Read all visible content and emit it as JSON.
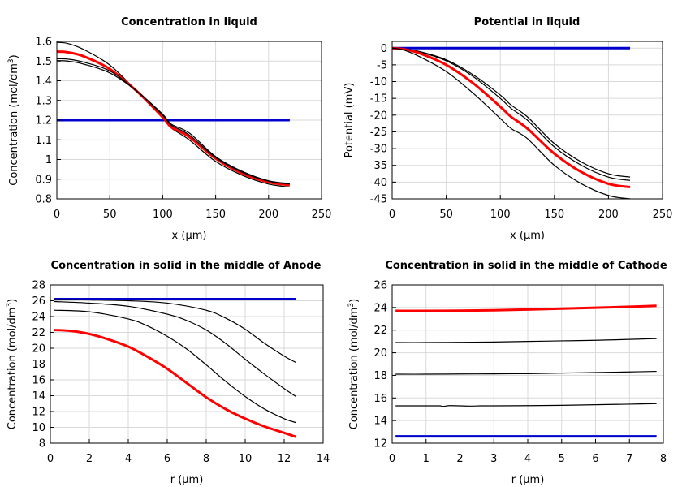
{
  "chart_data": [
    {
      "type": "line",
      "title": "Concentration in liquid",
      "xlabel": "x (µm)",
      "ylabel": "Concentration (mol/dm³)",
      "ylabel_main": "Concentration (mol/dm",
      "ylabel_sup": "3",
      "ylabel_tail": ")",
      "xlim": [
        0,
        250
      ],
      "ylim": [
        0.8,
        1.6
      ],
      "xticks": [
        0,
        50,
        100,
        150,
        200,
        250
      ],
      "yticks": [
        0.8,
        0.9,
        1,
        1.1,
        1.2,
        1.3,
        1.4,
        1.5,
        1.6
      ],
      "grid": true,
      "series": [
        {
          "color": "#0000cc",
          "width": 3,
          "x": [
            0,
            220
          ],
          "y": [
            1.2,
            1.2
          ]
        },
        {
          "color": "#000000",
          "width": 1.2,
          "x": [
            0,
            10,
            25,
            50,
            75,
            100,
            108,
            125,
            150,
            175,
            200,
            220
          ],
          "y": [
            1.595,
            1.59,
            1.56,
            1.48,
            1.35,
            1.21,
            1.16,
            1.1,
            0.99,
            0.92,
            0.875,
            0.86
          ]
        },
        {
          "color": "#ff0000",
          "width": 3,
          "x": [
            0,
            10,
            25,
            50,
            75,
            100,
            108,
            125,
            150,
            175,
            200,
            220
          ],
          "y": [
            1.548,
            1.545,
            1.525,
            1.46,
            1.35,
            1.215,
            1.165,
            1.115,
            1.005,
            0.93,
            0.885,
            0.87
          ]
        },
        {
          "color": "#000000",
          "width": 1.2,
          "x": [
            0,
            10,
            25,
            50,
            75,
            100,
            108,
            125,
            150,
            175,
            200,
            220
          ],
          "y": [
            1.512,
            1.51,
            1.495,
            1.45,
            1.35,
            1.225,
            1.175,
            1.125,
            1.01,
            0.935,
            0.89,
            0.875
          ]
        },
        {
          "color": "#000000",
          "width": 1.2,
          "x": [
            0,
            10,
            25,
            50,
            75,
            100,
            108,
            125,
            150,
            175,
            200,
            220
          ],
          "y": [
            1.502,
            1.5,
            1.485,
            1.44,
            1.35,
            1.23,
            1.18,
            1.135,
            1.015,
            0.94,
            0.892,
            0.878
          ]
        }
      ]
    },
    {
      "type": "line",
      "title": "Potential in liquid",
      "xlabel": "x (µm)",
      "ylabel": "Potential (mV)",
      "ylabel_main": "Potential (mV)",
      "ylabel_sup": "",
      "ylabel_tail": "",
      "xlim": [
        0,
        250
      ],
      "ylim": [
        -45,
        2
      ],
      "xticks": [
        0,
        50,
        100,
        150,
        200,
        250
      ],
      "yticks": [
        0,
        -5,
        -10,
        -15,
        -20,
        -25,
        -30,
        -35,
        -40,
        -45
      ],
      "grid": true,
      "series": [
        {
          "color": "#0000cc",
          "width": 3,
          "x": [
            0,
            220
          ],
          "y": [
            0,
            0
          ]
        },
        {
          "color": "#000000",
          "width": 1.2,
          "x": [
            0,
            10,
            25,
            50,
            75,
            100,
            110,
            125,
            150,
            175,
            200,
            220
          ],
          "y": [
            0,
            -0.2,
            -1,
            -3.5,
            -8,
            -14,
            -17,
            -20.5,
            -28.5,
            -34,
            -37.5,
            -38.5
          ]
        },
        {
          "color": "#000000",
          "width": 1.2,
          "x": [
            0,
            10,
            25,
            50,
            75,
            100,
            110,
            125,
            150,
            175,
            200,
            220
          ],
          "y": [
            0,
            -0.2,
            -1.1,
            -3.8,
            -8.5,
            -15,
            -18,
            -21.5,
            -29.5,
            -35,
            -38.5,
            -39.5
          ]
        },
        {
          "color": "#ff0000",
          "width": 3,
          "x": [
            0,
            10,
            25,
            50,
            75,
            100,
            110,
            125,
            150,
            175,
            200,
            220
          ],
          "y": [
            0,
            -0.3,
            -1.5,
            -5,
            -10.5,
            -17.5,
            -20.5,
            -24,
            -31.5,
            -37,
            -40.5,
            -41.5
          ]
        },
        {
          "color": "#000000",
          "width": 1.2,
          "x": [
            0,
            10,
            25,
            50,
            75,
            100,
            110,
            125,
            150,
            175,
            200,
            220
          ],
          "y": [
            0,
            -0.5,
            -2.5,
            -7,
            -13.5,
            -21,
            -24,
            -27,
            -35,
            -40.5,
            -44,
            -45
          ]
        }
      ]
    },
    {
      "type": "line",
      "title": "Concentration in solid in the middle of Anode",
      "xlabel": "r (µm)",
      "ylabel": "Concentration (mol/dm³)",
      "ylabel_main": "Concentration (mol/dm",
      "ylabel_sup": "3",
      "ylabel_tail": ")",
      "xlim": [
        0,
        14
      ],
      "ylim": [
        8,
        28
      ],
      "xticks": [
        0,
        2,
        4,
        6,
        8,
        10,
        12,
        14
      ],
      "yticks": [
        8,
        10,
        12,
        14,
        16,
        18,
        20,
        22,
        24,
        26,
        28
      ],
      "grid": true,
      "series": [
        {
          "color": "#0000cc",
          "width": 3,
          "x": [
            0.2,
            12.6
          ],
          "y": [
            26.2,
            26.2
          ]
        },
        {
          "color": "#000000",
          "width": 1.2,
          "x": [
            0.2,
            2,
            4,
            6,
            8,
            9,
            10,
            11,
            12,
            12.6
          ],
          "y": [
            26.15,
            26.1,
            26,
            25.7,
            24.8,
            23.8,
            22.4,
            20.6,
            19,
            18.2
          ]
        },
        {
          "color": "#000000",
          "width": 1.2,
          "x": [
            0.2,
            2,
            4,
            6,
            7,
            8,
            9,
            10,
            11,
            12,
            12.6
          ],
          "y": [
            25.9,
            25.7,
            25.3,
            24.3,
            23.5,
            22.3,
            20.6,
            18.6,
            16.7,
            14.9,
            13.9
          ]
        },
        {
          "color": "#000000",
          "width": 1.2,
          "x": [
            0.2,
            2,
            4,
            5,
            6,
            7,
            8,
            9,
            10,
            11,
            12,
            12.6
          ],
          "y": [
            24.8,
            24.6,
            23.7,
            22.8,
            21.5,
            19.9,
            17.9,
            15.8,
            13.9,
            12.3,
            11.1,
            10.6
          ]
        },
        {
          "color": "#ff0000",
          "width": 3,
          "x": [
            0.2,
            1,
            2,
            3,
            4,
            5,
            6,
            7,
            8,
            9,
            10,
            11,
            12,
            12.6
          ],
          "y": [
            22.3,
            22.2,
            21.8,
            21.1,
            20.2,
            18.9,
            17.4,
            15.6,
            13.8,
            12.3,
            11.1,
            10.1,
            9.3,
            8.8
          ]
        }
      ]
    },
    {
      "type": "line",
      "title": "Concentration in solid in the middle of Cathode",
      "xlabel": "r (µm)",
      "ylabel": "Concentration (mol/dm³)",
      "ylabel_main": "Concentration (mol/dm",
      "ylabel_sup": "3",
      "ylabel_tail": ")",
      "xlim": [
        0,
        8
      ],
      "ylim": [
        12,
        26
      ],
      "xticks": [
        0,
        1,
        2,
        3,
        4,
        5,
        6,
        7,
        8
      ],
      "yticks": [
        12,
        14,
        16,
        18,
        20,
        22,
        24,
        26
      ],
      "grid": true,
      "series": [
        {
          "color": "#0000cc",
          "width": 3,
          "x": [
            0.1,
            7.8
          ],
          "y": [
            12.6,
            12.6
          ]
        },
        {
          "color": "#000000",
          "width": 1.2,
          "x": [
            0.1,
            1,
            1.4,
            1.5,
            1.7,
            2,
            2.3,
            2.6,
            3,
            4,
            5,
            6,
            7,
            7.8
          ],
          "y": [
            15.3,
            15.3,
            15.3,
            15.25,
            15.32,
            15.3,
            15.28,
            15.3,
            15.3,
            15.32,
            15.35,
            15.4,
            15.45,
            15.5
          ]
        },
        {
          "color": "#000000",
          "width": 1.2,
          "x": [
            0.1,
            1,
            2,
            3,
            4,
            5,
            6,
            7,
            7.8
          ],
          "y": [
            18.1,
            18.1,
            18.12,
            18.13,
            18.15,
            18.2,
            18.25,
            18.3,
            18.35
          ]
        },
        {
          "color": "#000000",
          "width": 1.2,
          "x": [
            0.1,
            1,
            2,
            3,
            4,
            5,
            6,
            7,
            7.8
          ],
          "y": [
            20.9,
            20.9,
            20.92,
            20.95,
            21.0,
            21.05,
            21.1,
            21.18,
            21.25
          ]
        },
        {
          "color": "#ff0000",
          "width": 3,
          "x": [
            0.1,
            1,
            2,
            3,
            4,
            5,
            6,
            7,
            7.8
          ],
          "y": [
            23.7,
            23.7,
            23.72,
            23.76,
            23.82,
            23.9,
            23.98,
            24.07,
            24.15
          ]
        }
      ]
    }
  ]
}
